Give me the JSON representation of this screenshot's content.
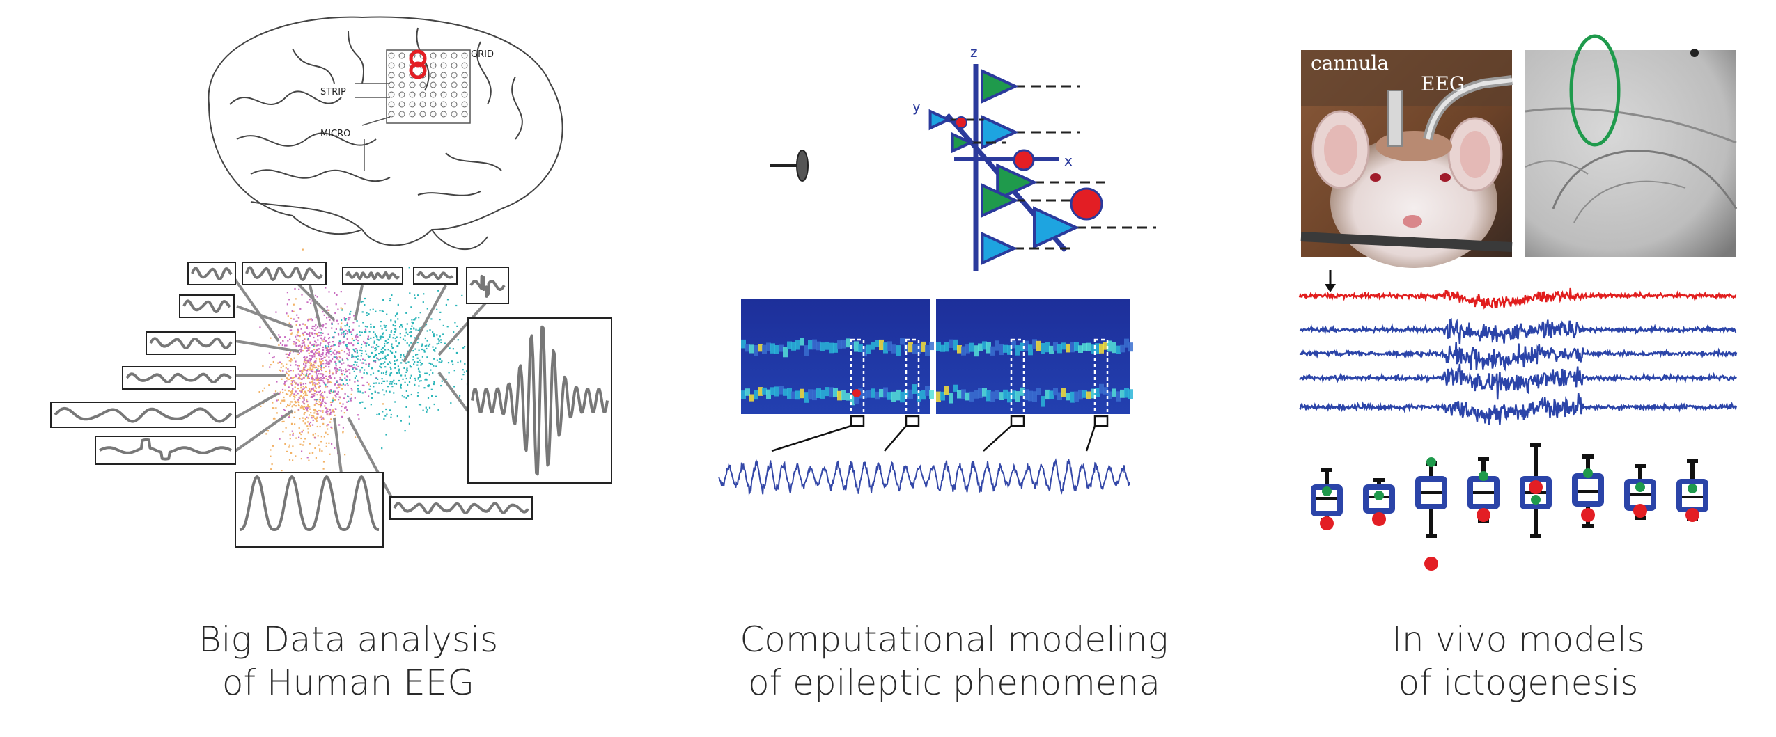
{
  "panels": {
    "human_eeg": {
      "caption_line1": "Big Data analysis",
      "caption_line2": "of Human EEG",
      "brain_labels": {
        "grid": "GRID",
        "strip": "STRIP",
        "micro": "MICRO"
      },
      "cluster_colors": {
        "magenta": "#c86bbf",
        "orange": "#f2b266",
        "cyan": "#2ab5b8"
      }
    },
    "modeling": {
      "caption_line1": "Computational modeling",
      "caption_line2": "of epileptic phenomena",
      "axis_labels": {
        "z": "z",
        "y": "y",
        "x": "x"
      },
      "neuron_colors": {
        "green": "#1f9a4c",
        "blue": "#1ea4e0",
        "red": "#e31e24"
      }
    },
    "in_vivo": {
      "caption_line1": "In vivo models",
      "caption_line2": "of ictogenesis",
      "photo_labels": {
        "cannula": "cannula",
        "eeg": "EEG"
      },
      "trace_colors": {
        "red": "#e11d1d",
        "blue": "#2b44a8"
      }
    }
  }
}
